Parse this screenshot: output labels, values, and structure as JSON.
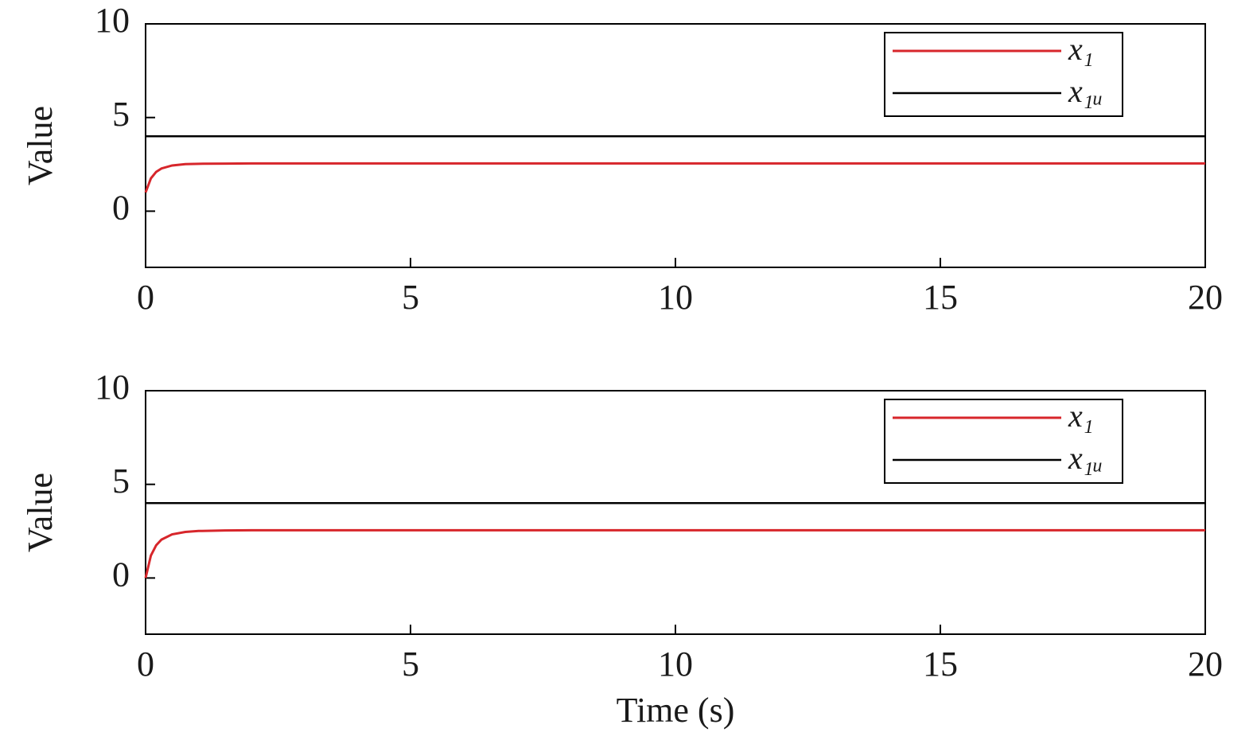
{
  "chart_data": [
    {
      "type": "line",
      "ylabel": "Value",
      "x": [
        0,
        0.1,
        0.2,
        0.3,
        0.5,
        0.75,
        1,
        1.5,
        2,
        3,
        5,
        10,
        15,
        20
      ],
      "series": [
        {
          "name": "x₁",
          "color": "#d7262b",
          "values": [
            1,
            1.75,
            2.1,
            2.28,
            2.44,
            2.51,
            2.53,
            2.54,
            2.55,
            2.55,
            2.55,
            2.55,
            2.55,
            2.55
          ]
        },
        {
          "name": "x₁ᵤ",
          "color": "#000000",
          "values": [
            4,
            4,
            4,
            4,
            4,
            4,
            4,
            4,
            4,
            4,
            4,
            4,
            4,
            4
          ]
        }
      ],
      "xlim": [
        0,
        20
      ],
      "xticks": [
        0,
        5,
        10,
        15,
        20
      ],
      "ylim": [
        -3,
        10
      ],
      "yticks": [
        0,
        5,
        10
      ],
      "legend": "upper right"
    },
    {
      "type": "line",
      "ylabel": "Value",
      "xlabel": "Time (s)",
      "x": [
        0,
        0.1,
        0.2,
        0.3,
        0.5,
        0.75,
        1,
        1.5,
        2,
        3,
        5,
        10,
        15,
        20
      ],
      "series": [
        {
          "name": "x₁",
          "color": "#d7262b",
          "values": [
            0,
            1.2,
            1.75,
            2.05,
            2.33,
            2.46,
            2.51,
            2.54,
            2.55,
            2.55,
            2.55,
            2.55,
            2.55,
            2.55
          ]
        },
        {
          "name": "x₁ᵤ",
          "color": "#000000",
          "values": [
            4,
            4,
            4,
            4,
            4,
            4,
            4,
            4,
            4,
            4,
            4,
            4,
            4,
            4
          ]
        }
      ],
      "xlim": [
        0,
        20
      ],
      "xticks": [
        0,
        5,
        10,
        15,
        20
      ],
      "ylim": [
        -3,
        10
      ],
      "yticks": [
        0,
        5,
        10
      ],
      "legend": "upper right"
    }
  ]
}
